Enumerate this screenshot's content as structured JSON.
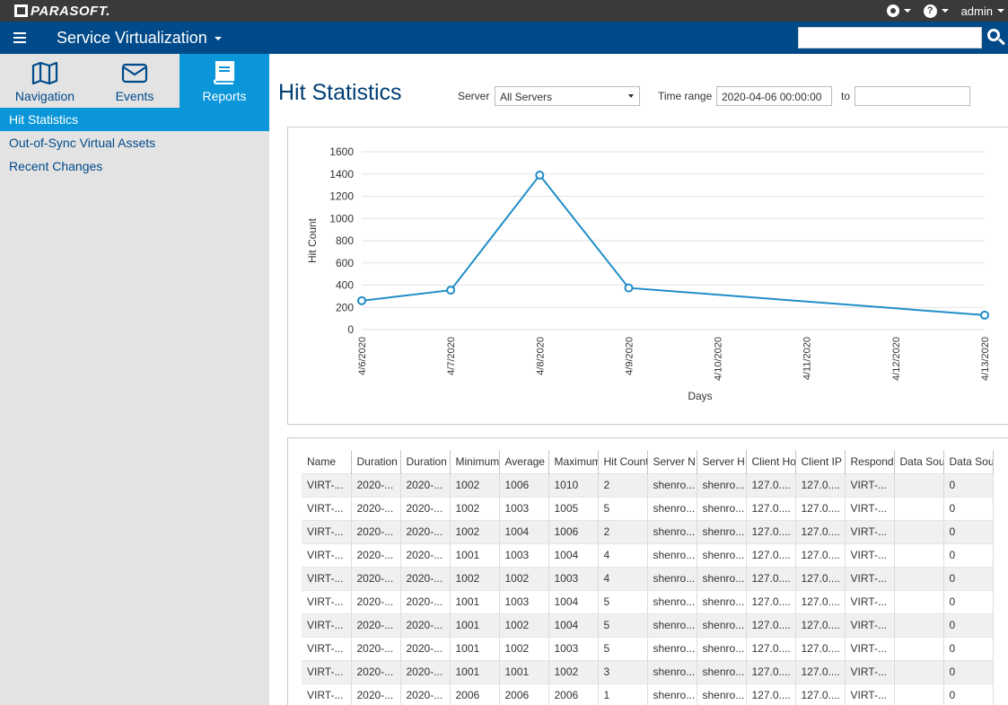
{
  "brand": {
    "logo_text": "PARASOFT."
  },
  "topbar": {
    "settings_icon": "gear-icon",
    "help_icon": "question-icon",
    "user": "admin"
  },
  "appbar": {
    "title": "Service Virtualization",
    "search_placeholder": ""
  },
  "sidebar": {
    "tabs": [
      {
        "label": "Navigation",
        "icon": "map-icon",
        "active": false
      },
      {
        "label": "Events",
        "icon": "envelope-icon",
        "active": false
      },
      {
        "label": "Reports",
        "icon": "book-icon",
        "active": true
      }
    ],
    "items": [
      {
        "label": "Hit Statistics",
        "active": true
      },
      {
        "label": "Out-of-Sync Virtual Assets",
        "active": false
      },
      {
        "label": "Recent Changes",
        "active": false
      }
    ]
  },
  "page": {
    "title": "Hit Statistics",
    "server_label": "Server",
    "server_value": "All Servers",
    "time_range_label": "Time range",
    "time_from": "2020-04-06 00:00:00",
    "to_label": "to",
    "time_to": ""
  },
  "chart_data": {
    "type": "line",
    "xlabel": "Days",
    "ylabel": "Hit Count",
    "ylim": [
      0,
      1600
    ],
    "yticks": [
      0,
      200,
      400,
      600,
      800,
      1000,
      1200,
      1400,
      1600
    ],
    "x": [
      "4/6/2020",
      "4/7/2020",
      "4/8/2020",
      "4/9/2020",
      "4/10/2020",
      "4/11/2020",
      "4/12/2020",
      "4/13/2020"
    ],
    "points": [
      {
        "x": "4/6/2020",
        "y": 260
      },
      {
        "x": "4/7/2020",
        "y": 355
      },
      {
        "x": "4/8/2020",
        "y": 1390
      },
      {
        "x": "4/9/2020",
        "y": 375
      },
      {
        "x": "4/13/2020",
        "y": 130
      }
    ],
    "color": "#1f8dc8",
    "grid": true
  },
  "table": {
    "headers": [
      "Name",
      "Duration",
      "Duration",
      "Minimum",
      "Average",
      "Maximum",
      "Hit Count",
      "Server N",
      "Server H",
      "Client Ho",
      "Client IP",
      "Respond",
      "Data Sou",
      "Data Sour"
    ],
    "rows": [
      [
        "VIRT-...",
        "2020-...",
        "2020-...",
        "1002",
        "1006",
        "1010",
        "2",
        "shenro...",
        "shenro...",
        "127.0....",
        "127.0....",
        "VIRT-...",
        "",
        "0"
      ],
      [
        "VIRT-...",
        "2020-...",
        "2020-...",
        "1002",
        "1003",
        "1005",
        "5",
        "shenro...",
        "shenro...",
        "127.0....",
        "127.0....",
        "VIRT-...",
        "",
        "0"
      ],
      [
        "VIRT-...",
        "2020-...",
        "2020-...",
        "1002",
        "1004",
        "1006",
        "2",
        "shenro...",
        "shenro...",
        "127.0....",
        "127.0....",
        "VIRT-...",
        "",
        "0"
      ],
      [
        "VIRT-...",
        "2020-...",
        "2020-...",
        "1001",
        "1003",
        "1004",
        "4",
        "shenro...",
        "shenro...",
        "127.0....",
        "127.0....",
        "VIRT-...",
        "",
        "0"
      ],
      [
        "VIRT-...",
        "2020-...",
        "2020-...",
        "1002",
        "1002",
        "1003",
        "4",
        "shenro...",
        "shenro...",
        "127.0....",
        "127.0....",
        "VIRT-...",
        "",
        "0"
      ],
      [
        "VIRT-...",
        "2020-...",
        "2020-...",
        "1001",
        "1003",
        "1004",
        "5",
        "shenro...",
        "shenro...",
        "127.0....",
        "127.0....",
        "VIRT-...",
        "",
        "0"
      ],
      [
        "VIRT-...",
        "2020-...",
        "2020-...",
        "1001",
        "1002",
        "1004",
        "5",
        "shenro...",
        "shenro...",
        "127.0....",
        "127.0....",
        "VIRT-...",
        "",
        "0"
      ],
      [
        "VIRT-...",
        "2020-...",
        "2020-...",
        "1001",
        "1002",
        "1003",
        "5",
        "shenro...",
        "shenro...",
        "127.0....",
        "127.0....",
        "VIRT-...",
        "",
        "0"
      ],
      [
        "VIRT-...",
        "2020-...",
        "2020-...",
        "1001",
        "1001",
        "1002",
        "3",
        "shenro...",
        "shenro...",
        "127.0....",
        "127.0....",
        "VIRT-...",
        "",
        "0"
      ],
      [
        "VIRT-...",
        "2020-...",
        "2020-...",
        "2006",
        "2006",
        "2006",
        "1",
        "shenro...",
        "shenro...",
        "127.0....",
        "127.0....",
        "VIRT-...",
        "",
        "0"
      ]
    ]
  }
}
